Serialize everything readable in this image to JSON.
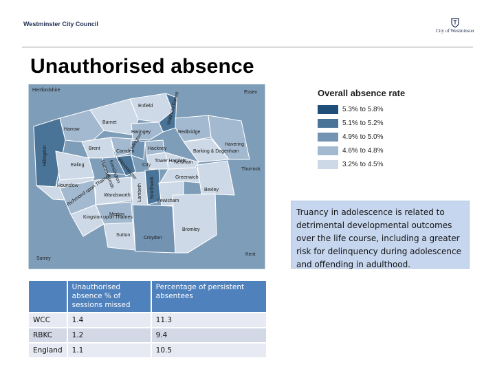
{
  "header": {
    "brand_left": "Westminster City Council",
    "brand_right": "City of Westminster"
  },
  "slide": {
    "title": "Unauthorised absence"
  },
  "map": {
    "labels": [
      "Hertfordshire",
      "Essex",
      "Enfield",
      "Waltham Forest",
      "Barnet",
      "Haringey",
      "Harrow",
      "Redbridge",
      "Havering",
      "Hillingdon",
      "Brent",
      "Camden",
      "Islington",
      "Hackney",
      "Barking & Dagenham",
      "Ealing",
      "Westminster",
      "Tower Hamlets",
      "Newham",
      "Thurrock",
      "Hammersmith",
      "Kensington",
      "Hounslow",
      "Greenwich",
      "Bexley",
      "Richmond upon Thames",
      "Wandsworth",
      "Lambeth",
      "Southwark",
      "Lewisham",
      "Kingston upon Thames",
      "Merton",
      "Bromley",
      "Sutton",
      "Croydon",
      "Kent",
      "Surrey",
      "City"
    ]
  },
  "legend": {
    "title": "Overall absence rate",
    "items": [
      {
        "label": "5.3% to 5.8%",
        "color": "#1f4e79"
      },
      {
        "label": "5.1% to 5.2%",
        "color": "#4a7497"
      },
      {
        "label": "4.9% to 5.0%",
        "color": "#7293b2"
      },
      {
        "label": "4.6% to 4.8%",
        "color": "#a3b9cf"
      },
      {
        "label": "3.2% to 4.5%",
        "color": "#cdd9e6"
      }
    ]
  },
  "callout": {
    "text": "Truancy in adolescence is related to detrimental developmental outcomes over the life course, including a greater risk for delinquency during adolescence and offending in adulthood."
  },
  "table": {
    "headers": [
      "",
      "Unauthorised absence % of sessions missed",
      "Percentage of persistent absentees"
    ],
    "rows": [
      [
        "WCC",
        "1.4",
        "11.3"
      ],
      [
        "RBKC",
        "1.2",
        "9.4"
      ],
      [
        "England",
        "1.1",
        "10.5"
      ]
    ]
  }
}
